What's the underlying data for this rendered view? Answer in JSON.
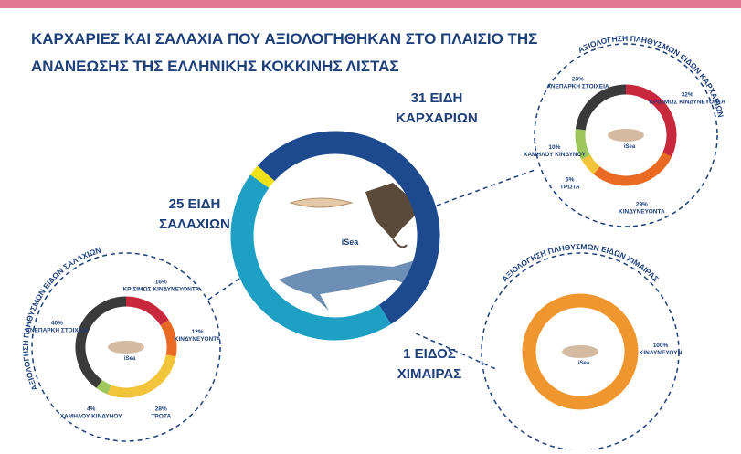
{
  "header": {
    "title_lines": [
      "ΚΑΡΧΑΡΙΕΣ ΚΑΙ ΣΑΛΑΧΙΑ ΠΟΥ ΑΞΙΟΛΟΓΗΘΗΚΑΝ ΣΤΟ ΠΛΑΙΣΙΟ ΤΗΣ",
      "ΑΝΑΝΕΩΣΗΣ ΤΗΣ ΕΛΛΗΝΙΚΗΣ ΚΟΚΚΙΝΗΣ ΛΙΣΤΑΣ"
    ],
    "logo": "iSea"
  },
  "chart_data": [
    {
      "type": "donut",
      "categories": [
        "ΚΑΡΧΑΡΙΩΝ",
        "ΣΑΛΑΧΙΩΝ",
        "ΧΙΜΑΙΡΑΣ"
      ],
      "values": [
        31,
        25,
        1
      ],
      "value_labels": [
        "31 ΕΙΔΗ",
        "25 ΕΙΔΗ",
        "1 ΕΙΔΟΣ"
      ],
      "colors": [
        "#1d4a8f",
        "#1e9fc4",
        "#f0e214"
      ]
    },
    {
      "type": "donut",
      "title": "ΑΞΙΟΛΟΓΗΣΗ ΠΛΗΘΥΣΜΩΝ ΕΙΔΩΝ ΚΑΡΧΑΡΙΩΝ",
      "categories": [
        "ΚΡΙΣΙΜΩΣ ΚΙΝΔΥΝΕΥΟΝΤΑ",
        "ΚΙΝΔΥΝΕΥΟΝΤΑ",
        "ΤΡΩΤΑ",
        "ΧΑΜΗΛΟΥ ΚΙΝΔΥΝΟΥ",
        "ΑΝΕΠΑΡΚΗ ΣΤΟΙΧΕΙΑ"
      ],
      "values": [
        32,
        29,
        6,
        10,
        23
      ],
      "value_labels": [
        "32%",
        "29%",
        "6%",
        "10%",
        "23%"
      ],
      "colors": [
        "#c8283c",
        "#ea6a23",
        "#f2c43a",
        "#9dc75a",
        "#3a3a3a"
      ]
    },
    {
      "type": "donut",
      "title": "ΑΞΙΟΛΟΓΗΣΗ ΠΛΗΘΥΣΜΩΝ ΕΙΔΩΝ ΣΑΛΑΧΙΩΝ",
      "categories": [
        "ΚΡΙΣΙΜΩΣ ΚΙΝΔΥΝΕΥΟΝΤΑ",
        "ΚΙΝΔΥΝΕΥΟΝΤΑ",
        "ΤΡΩΤΑ",
        "ΧΑΜΗΛΟΥ ΚΙΝΔΥΝΟΥ",
        "ΑΝΕΠΑΡΚΗ ΣΤΟΙΧΕΙΑ"
      ],
      "values": [
        16,
        12,
        28,
        4,
        40
      ],
      "value_labels": [
        "16%",
        "12%",
        "28%",
        "4%",
        "40%"
      ],
      "colors": [
        "#c8283c",
        "#ea6a23",
        "#f2c43a",
        "#9dc75a",
        "#3a3a3a"
      ]
    },
    {
      "type": "donut",
      "title": "ΑΞΙΟΛΟΓΗΣΗ ΠΛΗΘΥΣΜΩΝ ΕΙΔΩΝ ΧΙΜΑΙΡΑΣ",
      "categories": [
        "ΚΙΝΔΥΝΕΥΟΥΝ"
      ],
      "values": [
        100
      ],
      "value_labels": [
        "100%"
      ],
      "colors": [
        "#f0962e"
      ]
    }
  ]
}
